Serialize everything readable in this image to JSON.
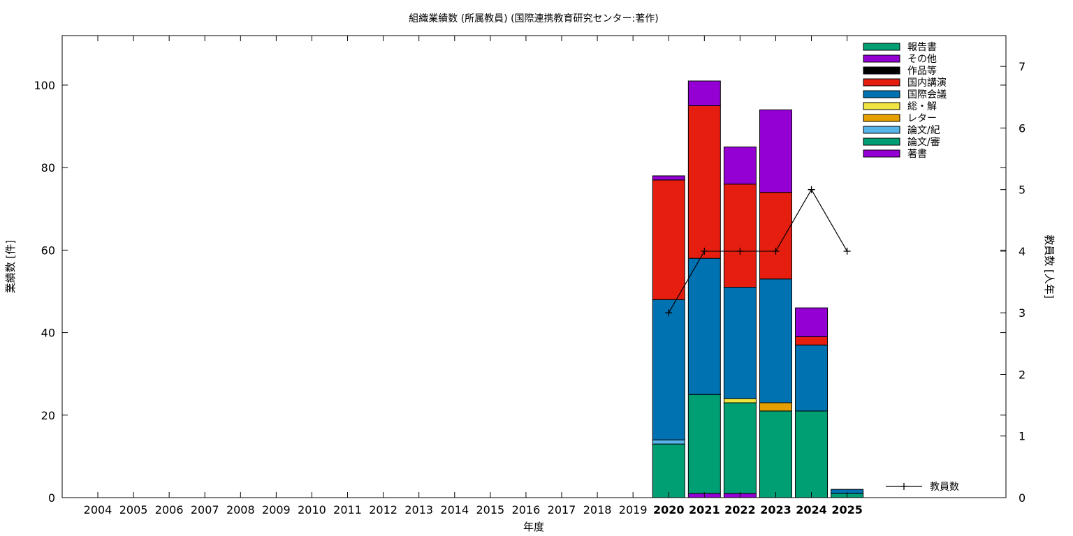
{
  "chart_data": {
    "type": "bar",
    "title": "組織業績数 (所属教員) (国際連携教育研究センター:著作)",
    "xlabel": "年度",
    "ylabel": "業績数 [件]",
    "y2label": "教員数 [人年]",
    "ylim": [
      0,
      112
    ],
    "y2lim": [
      0,
      7.5
    ],
    "yticks": [
      "0",
      "20",
      "40",
      "60",
      "80",
      "100"
    ],
    "y2ticks": [
      "0",
      "1",
      "2",
      "3",
      "4",
      "5",
      "6",
      "7"
    ],
    "grid": false,
    "legend_position": "top-right",
    "categories": [
      "2004",
      "2005",
      "2006",
      "2007",
      "2008",
      "2009",
      "2010",
      "2011",
      "2012",
      "2013",
      "2014",
      "2015",
      "2016",
      "2017",
      "2018",
      "2019",
      "2020",
      "2021",
      "2022",
      "2023",
      "2024",
      "2025"
    ],
    "highlighted_categories": [
      "2020",
      "2021",
      "2022",
      "2023",
      "2024",
      "2025"
    ],
    "stack_order_bottom_to_top": [
      "著書",
      "論文/審",
      "論文/紀",
      "レター",
      "総・解",
      "国際会議",
      "国内講演",
      "作品等",
      "その他",
      "報告書"
    ],
    "series": [
      {
        "name": "報告書",
        "color": "#009e73",
        "values": [
          0,
          0,
          0,
          0,
          0,
          0,
          0,
          0,
          0,
          0,
          0,
          0,
          0,
          0,
          0,
          0,
          0,
          0,
          0,
          0,
          0,
          0
        ]
      },
      {
        "name": "その他",
        "color": "#9400d3",
        "values": [
          0,
          0,
          0,
          0,
          0,
          0,
          0,
          0,
          0,
          0,
          0,
          0,
          0,
          0,
          0,
          0,
          1,
          6,
          9,
          20,
          7,
          0
        ]
      },
      {
        "name": "作品等",
        "color": "#000000",
        "values": [
          0,
          0,
          0,
          0,
          0,
          0,
          0,
          0,
          0,
          0,
          0,
          0,
          0,
          0,
          0,
          0,
          0,
          0,
          0,
          0,
          0,
          0
        ]
      },
      {
        "name": "国内講演",
        "color": "#e51e10",
        "values": [
          0,
          0,
          0,
          0,
          0,
          0,
          0,
          0,
          0,
          0,
          0,
          0,
          0,
          0,
          0,
          0,
          29,
          37,
          25,
          21,
          2,
          0
        ]
      },
      {
        "name": "国際会議",
        "color": "#0072b2",
        "values": [
          0,
          0,
          0,
          0,
          0,
          0,
          0,
          0,
          0,
          0,
          0,
          0,
          0,
          0,
          0,
          0,
          34,
          33,
          27,
          30,
          16,
          1
        ]
      },
      {
        "name": "総・解",
        "color": "#f0e442",
        "values": [
          0,
          0,
          0,
          0,
          0,
          0,
          0,
          0,
          0,
          0,
          0,
          0,
          0,
          0,
          0,
          0,
          0,
          0,
          1,
          0,
          0,
          0
        ]
      },
      {
        "name": "レター",
        "color": "#e69f00",
        "values": [
          0,
          0,
          0,
          0,
          0,
          0,
          0,
          0,
          0,
          0,
          0,
          0,
          0,
          0,
          0,
          0,
          0,
          0,
          0,
          2,
          0,
          0
        ]
      },
      {
        "name": "論文/紀",
        "color": "#56b4e9",
        "values": [
          0,
          0,
          0,
          0,
          0,
          0,
          0,
          0,
          0,
          0,
          0,
          0,
          0,
          0,
          0,
          0,
          1,
          0,
          0,
          0,
          0,
          0
        ]
      },
      {
        "name": "論文/審",
        "color": "#009e73",
        "values": [
          0,
          0,
          0,
          0,
          0,
          0,
          0,
          0,
          0,
          0,
          0,
          0,
          0,
          0,
          0,
          0,
          13,
          24,
          22,
          21,
          21,
          1
        ]
      },
      {
        "name": "著書",
        "color": "#9400d3",
        "values": [
          0,
          0,
          0,
          0,
          0,
          0,
          0,
          0,
          0,
          0,
          0,
          0,
          0,
          0,
          0,
          0,
          0,
          1,
          1,
          0,
          0,
          0
        ]
      }
    ],
    "line_series": {
      "name": "教員数",
      "axis": "y2",
      "color": "#000000",
      "x": [
        "2020",
        "2021",
        "2022",
        "2023",
        "2024",
        "2025"
      ],
      "values": [
        3,
        4,
        4,
        4,
        5,
        4
      ]
    }
  }
}
